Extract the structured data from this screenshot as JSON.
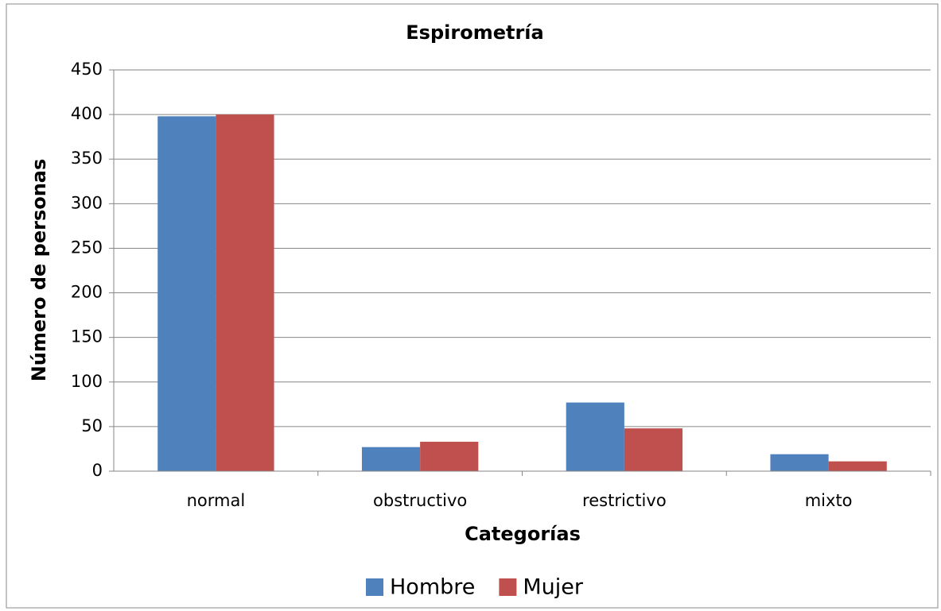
{
  "chart_data": {
    "type": "bar",
    "title": "Espirometría",
    "x_label": "Categorías",
    "y_label": "Número de personas",
    "categories": [
      "normal",
      "obstructivo",
      "restrictivo",
      "mixto"
    ],
    "series": [
      {
        "name": "Hombre",
        "color": "#4f81bd",
        "values": [
          398,
          27,
          77,
          19
        ]
      },
      {
        "name": "Mujer",
        "color": "#c0504d",
        "values": [
          400,
          33,
          48,
          11
        ]
      }
    ],
    "ylim": [
      0,
      450
    ],
    "yticks": [
      0,
      50,
      100,
      150,
      200,
      250,
      300,
      350,
      400,
      450
    ],
    "grid": true,
    "legend": "bottom"
  }
}
